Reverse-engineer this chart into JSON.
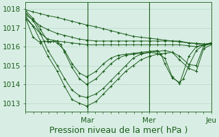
{
  "background_color": "#d8eee4",
  "grid_color": "#b8d8c8",
  "line_color": "#1a5c1a",
  "marker_color": "#1a5c1a",
  "xlabel": "Pression niveau de la mer( hPa )",
  "xlabel_fontsize": 9,
  "tick_label_fontsize": 7.5,
  "day_labels": [
    "Mar",
    "Mer",
    "Jeu"
  ],
  "ylim": [
    1012.55,
    1018.35
  ],
  "yticks": [
    1013,
    1014,
    1015,
    1016,
    1017,
    1018
  ],
  "n_days": 3,
  "series": [
    {
      "x": [
        0.0,
        0.04,
        0.08,
        0.12,
        0.17,
        0.21,
        0.25,
        0.29,
        0.33,
        0.38,
        0.42,
        0.46,
        0.5,
        0.54,
        0.58,
        0.62,
        0.67,
        0.71,
        0.75,
        0.79,
        0.83,
        0.88,
        0.92,
        0.96,
        1.0
      ],
      "y": [
        1017.6,
        1017.1,
        1016.3,
        1015.5,
        1014.7,
        1013.9,
        1013.2,
        1013.0,
        1012.85,
        1013.1,
        1013.5,
        1013.9,
        1014.3,
        1014.7,
        1015.0,
        1015.3,
        1015.5,
        1015.6,
        1015.65,
        1015.7,
        1015.5,
        1015.05,
        1015.0,
        1016.05,
        1016.15
      ]
    },
    {
      "x": [
        0.0,
        0.04,
        0.08,
        0.12,
        0.17,
        0.21,
        0.25,
        0.29,
        0.33,
        0.38,
        0.42,
        0.46,
        0.5,
        0.54,
        0.58,
        0.62,
        0.67,
        0.71,
        0.75,
        0.79,
        0.83,
        0.88,
        0.92,
        0.96,
        1.0
      ],
      "y": [
        1017.8,
        1017.4,
        1016.7,
        1015.8,
        1015.0,
        1014.3,
        1013.7,
        1013.4,
        1013.3,
        1013.5,
        1013.8,
        1014.2,
        1014.6,
        1015.0,
        1015.4,
        1015.6,
        1015.7,
        1015.75,
        1015.8,
        1015.7,
        1015.3,
        1014.85,
        1014.7,
        1015.9,
        1016.1
      ]
    },
    {
      "x": [
        0.0,
        0.04,
        0.08,
        0.12,
        0.13,
        0.17,
        0.19,
        0.21,
        0.25,
        0.29,
        0.33,
        0.38,
        0.42,
        0.46,
        0.5,
        0.54,
        0.58,
        0.62,
        0.67,
        0.71,
        0.75,
        0.79,
        0.83,
        0.88,
        0.92,
        0.96,
        1.0
      ],
      "y": [
        1017.9,
        1017.5,
        1016.9,
        1016.3,
        1016.25,
        1016.3,
        1016.1,
        1015.7,
        1014.9,
        1014.3,
        1014.0,
        1014.3,
        1014.7,
        1015.1,
        1015.4,
        1015.55,
        1015.6,
        1015.65,
        1015.7,
        1015.65,
        1015.4,
        1014.4,
        1014.05,
        1015.5,
        1016.0,
        1016.1,
        1016.15
      ]
    },
    {
      "x": [
        0.0,
        0.04,
        0.08,
        0.1,
        0.12,
        0.15,
        0.17,
        0.21,
        0.25,
        0.29,
        0.33,
        0.38,
        0.42,
        0.46,
        0.5,
        0.54,
        0.58,
        0.62,
        0.67,
        0.71,
        0.73,
        0.75,
        0.79,
        0.83,
        0.85,
        0.88,
        0.92,
        0.96,
        1.0
      ],
      "y": [
        1017.5,
        1016.5,
        1016.2,
        1016.3,
        1016.25,
        1016.3,
        1016.2,
        1015.8,
        1015.1,
        1014.6,
        1014.4,
        1014.7,
        1015.1,
        1015.4,
        1015.55,
        1015.6,
        1015.65,
        1015.7,
        1015.75,
        1015.8,
        1015.6,
        1015.1,
        1014.35,
        1014.1,
        1014.3,
        1015.0,
        1015.8,
        1016.1,
        1016.2
      ]
    },
    {
      "x": [
        0.0,
        0.04,
        0.08,
        0.12,
        0.17,
        0.21,
        0.25,
        0.29,
        0.33,
        0.38,
        0.42,
        0.46,
        0.5,
        0.54,
        0.58,
        0.62,
        0.67,
        0.71,
        0.75,
        0.79,
        0.83,
        0.88,
        0.92,
        0.96,
        1.0
      ],
      "y": [
        1017.5,
        1017.1,
        1016.7,
        1016.4,
        1016.3,
        1016.25,
        1016.2,
        1016.15,
        1016.1,
        1016.1,
        1016.1,
        1016.1,
        1016.1,
        1016.1,
        1016.1,
        1016.1,
        1016.1,
        1016.1,
        1016.1,
        1016.1,
        1016.1,
        1016.05,
        1016.0,
        1016.1,
        1016.2
      ]
    },
    {
      "x": [
        0.0,
        0.04,
        0.08,
        0.12,
        0.17,
        0.21,
        0.25,
        0.29,
        0.33,
        0.38,
        0.42,
        0.46,
        0.5,
        0.54,
        0.58,
        0.62,
        0.67,
        0.71,
        0.75,
        0.79,
        0.83,
        0.88,
        0.92,
        0.96,
        1.0
      ],
      "y": [
        1017.7,
        1017.4,
        1017.1,
        1016.9,
        1016.7,
        1016.6,
        1016.5,
        1016.4,
        1016.35,
        1016.3,
        1016.3,
        1016.3,
        1016.3,
        1016.3,
        1016.3,
        1016.3,
        1016.3,
        1016.3,
        1016.3,
        1016.3,
        1016.3,
        1016.2,
        1016.15,
        1016.1,
        1016.2
      ]
    },
    {
      "x": [
        0.0,
        0.04,
        0.08,
        0.12,
        0.17,
        0.21,
        0.25,
        0.29,
        0.33,
        0.38,
        0.42,
        0.46,
        0.5,
        0.54,
        0.58,
        0.62,
        0.67,
        0.71,
        0.75,
        0.79,
        0.83,
        0.88,
        0.92,
        0.96,
        1.0
      ],
      "y": [
        1017.95,
        1017.85,
        1017.75,
        1017.65,
        1017.55,
        1017.45,
        1017.35,
        1017.25,
        1017.15,
        1017.05,
        1016.95,
        1016.85,
        1016.75,
        1016.65,
        1016.55,
        1016.5,
        1016.45,
        1016.4,
        1016.35,
        1016.3,
        1016.25,
        1016.2,
        1016.18,
        1016.15,
        1016.15
      ]
    }
  ]
}
